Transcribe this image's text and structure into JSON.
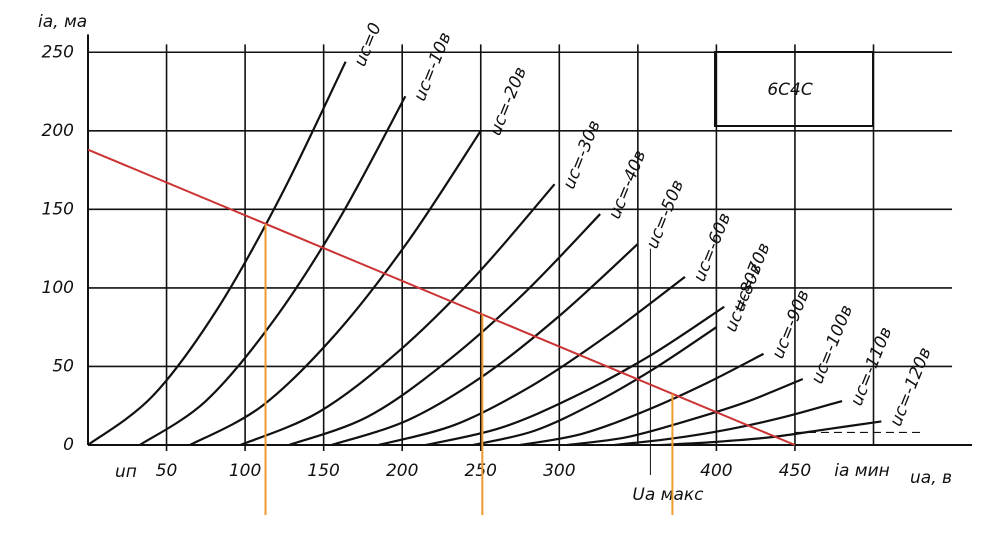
{
  "chart_data": {
    "type": "line",
    "title": "6С4С",
    "y_label": "iа, ма",
    "x_label": "uа, в",
    "xlim": [
      0,
      550
    ],
    "ylim": [
      0,
      255
    ],
    "xticks": [
      50,
      100,
      150,
      200,
      250,
      300,
      400,
      450
    ],
    "xgrid": [
      50,
      100,
      150,
      200,
      250,
      300,
      350,
      400,
      450,
      500
    ],
    "yticks": [
      0,
      50,
      100,
      150,
      200,
      250
    ],
    "grid": true,
    "supply_label": "uп",
    "ua_max": {
      "label": "Uа макс",
      "x": 358
    },
    "ia_min": {
      "label": "iа мин",
      "y": 8
    },
    "series": [
      {
        "name": "uc=0",
        "color": "#111111",
        "x": [
          0,
          41,
          82,
          123,
          164
        ],
        "values": [
          0,
          31,
          86,
          159,
          244
        ]
      },
      {
        "name": "uc=-10в",
        "color": "#111111",
        "x": [
          33,
          75,
          118,
          160,
          202
        ],
        "values": [
          0,
          28,
          79,
          144,
          222
        ]
      },
      {
        "name": "uc=-20в",
        "color": "#111111",
        "x": [
          65,
          111,
          158,
          204,
          250
        ],
        "values": [
          0,
          25,
          71,
          130,
          200
        ]
      },
      {
        "name": "uc=-30в",
        "color": "#111111",
        "x": [
          97,
          147,
          197,
          247,
          297
        ],
        "values": [
          0,
          21,
          59,
          108,
          166
        ]
      },
      {
        "name": "uc=-40в",
        "color": "#111111",
        "x": [
          128,
          178,
          227,
          277,
          326
        ],
        "values": [
          0,
          18,
          52,
          96,
          147
        ]
      },
      {
        "name": "uc=-50в",
        "color": "#111111",
        "x": [
          155,
          204,
          253,
          301,
          350
        ],
        "values": [
          0,
          16,
          45,
          83,
          128
        ]
      },
      {
        "name": "uc=-60в",
        "color": "#111111",
        "x": [
          185,
          234,
          283,
          331,
          380
        ],
        "values": [
          0,
          13,
          38,
          70,
          107
        ]
      },
      {
        "name": "uc=-70в",
        "color": "#111111",
        "x": [
          215,
          263,
          310,
          358,
          405
        ],
        "values": [
          0,
          11,
          31,
          57,
          88
        ]
      },
      {
        "name": "uc=-80в",
        "color": "#111111",
        "x": [
          245,
          284,
          323,
          361,
          400
        ],
        "values": [
          0,
          9,
          27,
          49,
          75
        ]
      },
      {
        "name": "uc=-90в",
        "color": "#111111",
        "x": [
          275,
          314,
          353,
          391,
          430
        ],
        "values": [
          0,
          7,
          21,
          38,
          58
        ]
      },
      {
        "name": "uc=-100в",
        "color": "#111111",
        "x": [
          305,
          343,
          380,
          418,
          455
        ],
        "values": [
          0,
          5,
          15,
          27,
          42
        ]
      },
      {
        "name": "uc=-110в",
        "color": "#111111",
        "x": [
          335,
          371,
          408,
          444,
          480
        ],
        "values": [
          0,
          4,
          10,
          18,
          28
        ]
      },
      {
        "name": "uc=-120в",
        "color": "#111111",
        "x": [
          365,
          400,
          435,
          470,
          505
        ],
        "values": [
          0,
          2,
          5,
          10,
          15
        ]
      }
    ],
    "load_line": {
      "color": "#cc3333",
      "x": [
        0,
        450
      ],
      "values": [
        188,
        0
      ]
    },
    "operating_points": {
      "color": "#f09a30",
      "x": [
        113,
        251,
        372
      ]
    }
  }
}
